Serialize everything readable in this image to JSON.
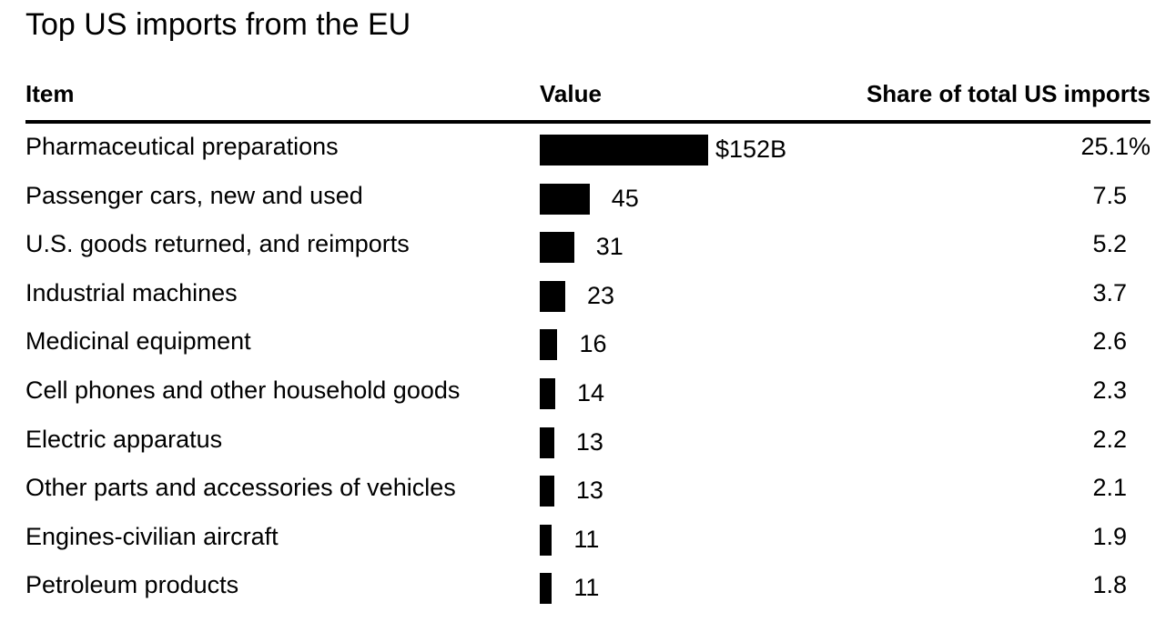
{
  "title": "Top US imports from the EU",
  "headers": {
    "item": "Item",
    "value": "Value",
    "share": "Share of total US imports"
  },
  "chart_data": {
    "type": "bar",
    "orientation": "horizontal",
    "title": "Top US imports from the EU",
    "categories": [
      "Pharmaceutical preparations",
      "Passenger cars, new and used",
      "U.S. goods returned, and reimports",
      "Industrial machines",
      "Medicinal equipment",
      "Cell phones and other household goods",
      "Electric apparatus",
      "Other parts and accessories of vehicles",
      "Engines-civilian aircraft",
      "Petroleum products"
    ],
    "values": [
      152,
      45,
      31,
      23,
      16,
      14,
      13,
      13,
      11,
      11
    ],
    "value_labels": [
      "$152B",
      "45",
      "31",
      "23",
      "16",
      "14",
      "13",
      "13",
      "11",
      "11"
    ],
    "unit": "billion USD",
    "share_labels": [
      "25.1%",
      "7.5",
      "5.2",
      "3.7",
      "2.6",
      "2.3",
      "2.2",
      "2.1",
      "1.9",
      "1.8"
    ],
    "share_values": [
      25.1,
      7.5,
      5.2,
      3.7,
      2.6,
      2.3,
      2.2,
      2.1,
      1.9,
      1.8
    ],
    "xlim": [
      0,
      152
    ],
    "grid": false,
    "legend": "none",
    "bar_color": "#000000"
  }
}
